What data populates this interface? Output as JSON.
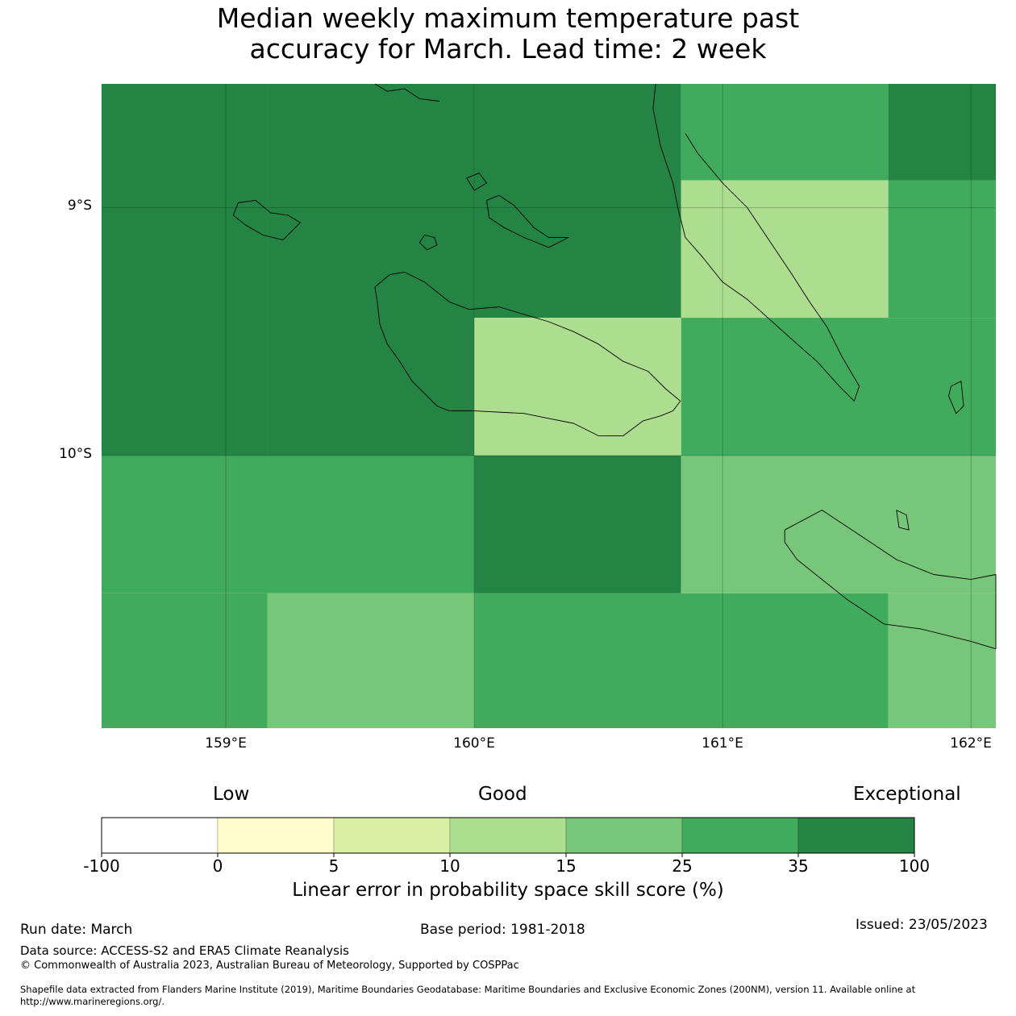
{
  "title_lines": [
    "Median weekly maximum temperature past",
    "accuracy for March. Lead time: 2 week"
  ],
  "map": {
    "lon_range": [
      158.5,
      162.1
    ],
    "lat_range": [
      -11.1,
      -8.5
    ],
    "lat_ticks": [
      {
        "value": -9,
        "label": "9°S"
      },
      {
        "value": -10,
        "label": "10°S"
      }
    ],
    "lon_ticks": [
      {
        "value": 159,
        "label": "159°E"
      },
      {
        "value": 160,
        "label": "160°E"
      },
      {
        "value": 161,
        "label": "161°E"
      },
      {
        "value": 162,
        "label": "162°E"
      }
    ],
    "cells": [
      {
        "lon0": 158.5,
        "lon1": 159.167,
        "lat0": -10.0,
        "lat1": -8.5,
        "category": "35-100"
      },
      {
        "lon0": 159.167,
        "lon1": 160.0,
        "lat0": -10.0,
        "lat1": -8.5,
        "category": "35-100"
      },
      {
        "lon0": 160.0,
        "lon1": 160.833,
        "lat0": -9.444,
        "lat1": -8.5,
        "category": "35-100"
      },
      {
        "lon0": 160.0,
        "lon1": 160.833,
        "lat0": -10.0,
        "lat1": -9.444,
        "category": "10-15"
      },
      {
        "lon0": 160.833,
        "lon1": 161.667,
        "lat0": -8.889,
        "lat1": -8.5,
        "category": "25-35"
      },
      {
        "lon0": 161.667,
        "lon1": 162.1,
        "lat0": -8.889,
        "lat1": -8.5,
        "category": "35-100"
      },
      {
        "lon0": 160.833,
        "lon1": 161.667,
        "lat0": -9.444,
        "lat1": -8.889,
        "category": "10-15"
      },
      {
        "lon0": 161.667,
        "lon1": 162.1,
        "lat0": -9.444,
        "lat1": -8.889,
        "category": "25-35"
      },
      {
        "lon0": 160.833,
        "lon1": 162.1,
        "lat0": -10.0,
        "lat1": -9.444,
        "category": "25-35"
      },
      {
        "lon0": 158.5,
        "lon1": 160.0,
        "lat0": -10.556,
        "lat1": -10.0,
        "category": "25-35"
      },
      {
        "lon0": 158.5,
        "lon1": 159.167,
        "lat0": -11.1,
        "lat1": -10.556,
        "category": "25-35"
      },
      {
        "lon0": 159.167,
        "lon1": 160.0,
        "lat0": -11.1,
        "lat1": -10.556,
        "category": "15-25"
      },
      {
        "lon0": 160.0,
        "lon1": 160.833,
        "lat0": -10.556,
        "lat1": -10.0,
        "category": "35-100"
      },
      {
        "lon0": 160.833,
        "lon1": 162.1,
        "lat0": -10.556,
        "lat1": -10.0,
        "category": "15-25"
      },
      {
        "lon0": 160.0,
        "lon1": 161.667,
        "lat0": -11.1,
        "lat1": -10.556,
        "category": "25-35"
      },
      {
        "lon0": 161.667,
        "lon1": 162.1,
        "lat0": -11.1,
        "lat1": -10.556,
        "category": "15-25"
      }
    ],
    "coastlines": [
      {
        "name": "guadalcanal-coast",
        "points": [
          [
            159.6,
            -9.32
          ],
          [
            159.66,
            -9.27
          ],
          [
            159.72,
            -9.26
          ],
          [
            159.8,
            -9.3
          ],
          [
            159.9,
            -9.38
          ],
          [
            159.98,
            -9.41
          ],
          [
            160.1,
            -9.4
          ],
          [
            160.2,
            -9.43
          ],
          [
            160.3,
            -9.46
          ],
          [
            160.4,
            -9.5
          ],
          [
            160.5,
            -9.55
          ],
          [
            160.6,
            -9.62
          ],
          [
            160.7,
            -9.66
          ],
          [
            160.77,
            -9.73
          ],
          [
            160.83,
            -9.78
          ],
          [
            160.8,
            -9.82
          ],
          [
            160.75,
            -9.84
          ],
          [
            160.68,
            -9.86
          ],
          [
            160.6,
            -9.92
          ],
          [
            160.5,
            -9.92
          ],
          [
            160.4,
            -9.87
          ],
          [
            160.3,
            -9.85
          ],
          [
            160.2,
            -9.83
          ],
          [
            160.0,
            -9.82
          ],
          [
            159.9,
            -9.82
          ],
          [
            159.85,
            -9.8
          ],
          [
            159.8,
            -9.75
          ],
          [
            159.75,
            -9.7
          ],
          [
            159.7,
            -9.62
          ],
          [
            159.65,
            -9.55
          ],
          [
            159.62,
            -9.47
          ],
          [
            159.61,
            -9.38
          ],
          [
            159.6,
            -9.32
          ]
        ]
      },
      {
        "name": "malaita-coast",
        "points": [
          [
            160.85,
            -8.7
          ],
          [
            160.9,
            -8.78
          ],
          [
            160.95,
            -8.84
          ],
          [
            161.0,
            -8.9
          ],
          [
            161.1,
            -9.0
          ],
          [
            161.2,
            -9.15
          ],
          [
            161.28,
            -9.27
          ],
          [
            161.35,
            -9.38
          ],
          [
            161.42,
            -9.48
          ],
          [
            161.48,
            -9.6
          ],
          [
            161.55,
            -9.72
          ],
          [
            161.53,
            -9.78
          ],
          [
            161.47,
            -9.72
          ],
          [
            161.38,
            -9.62
          ],
          [
            161.3,
            -9.55
          ],
          [
            161.2,
            -9.46
          ],
          [
            161.1,
            -9.37
          ],
          [
            161.0,
            -9.3
          ],
          [
            160.92,
            -9.2
          ],
          [
            160.85,
            -9.12
          ],
          [
            160.82,
            -9.0
          ],
          [
            160.8,
            -8.9
          ],
          [
            160.75,
            -8.75
          ],
          [
            160.72,
            -8.6
          ],
          [
            160.73,
            -8.5
          ]
        ]
      },
      {
        "name": "nggela-island-west",
        "points": [
          [
            160.05,
            -8.97
          ],
          [
            160.1,
            -8.95
          ],
          [
            160.16,
            -8.99
          ],
          [
            160.24,
            -9.08
          ],
          [
            160.3,
            -9.12
          ],
          [
            160.38,
            -9.12
          ],
          [
            160.3,
            -9.16
          ],
          [
            160.2,
            -9.12
          ],
          [
            160.12,
            -9.08
          ],
          [
            160.06,
            -9.04
          ],
          [
            160.05,
            -8.97
          ]
        ]
      },
      {
        "name": "nggela-island-east",
        "points": [
          [
            159.97,
            -8.88
          ],
          [
            160.02,
            -8.86
          ],
          [
            160.05,
            -8.9
          ],
          [
            160.0,
            -8.93
          ],
          [
            159.97,
            -8.88
          ]
        ]
      },
      {
        "name": "russell-islands",
        "points": [
          [
            159.05,
            -8.98
          ],
          [
            159.12,
            -8.97
          ],
          [
            159.18,
            -9.02
          ],
          [
            159.25,
            -9.03
          ],
          [
            159.3,
            -9.06
          ],
          [
            159.23,
            -9.13
          ],
          [
            159.15,
            -9.11
          ],
          [
            159.08,
            -9.07
          ],
          [
            159.03,
            -9.03
          ],
          [
            159.05,
            -8.98
          ]
        ]
      },
      {
        "name": "savo-island",
        "points": [
          [
            159.8,
            -9.11
          ],
          [
            159.84,
            -9.12
          ],
          [
            159.85,
            -9.15
          ],
          [
            159.81,
            -9.17
          ],
          [
            159.78,
            -9.14
          ],
          [
            159.8,
            -9.11
          ]
        ]
      },
      {
        "name": "san-cristobal-coast",
        "points": [
          [
            161.25,
            -10.3
          ],
          [
            161.4,
            -10.22
          ],
          [
            161.55,
            -10.32
          ],
          [
            161.7,
            -10.42
          ],
          [
            161.85,
            -10.48
          ],
          [
            162.0,
            -10.5
          ],
          [
            162.1,
            -10.48
          ],
          [
            162.1,
            -10.78
          ],
          [
            162.0,
            -10.75
          ],
          [
            161.8,
            -10.7
          ],
          [
            161.65,
            -10.68
          ],
          [
            161.5,
            -10.58
          ],
          [
            161.4,
            -10.5
          ],
          [
            161.3,
            -10.42
          ],
          [
            161.25,
            -10.35
          ],
          [
            161.25,
            -10.3
          ]
        ]
      },
      {
        "name": "ulawa-island",
        "points": [
          [
            161.92,
            -9.72
          ],
          [
            161.96,
            -9.7
          ],
          [
            161.97,
            -9.8
          ],
          [
            161.94,
            -9.83
          ],
          [
            161.91,
            -9.76
          ],
          [
            161.92,
            -9.72
          ]
        ]
      },
      {
        "name": "uki-island",
        "points": [
          [
            161.7,
            -10.22
          ],
          [
            161.74,
            -10.24
          ],
          [
            161.75,
            -10.3
          ],
          [
            161.71,
            -10.29
          ],
          [
            161.7,
            -10.22
          ]
        ]
      },
      {
        "name": "north-coast-islands",
        "points": [
          [
            159.6,
            -8.5
          ],
          [
            159.65,
            -8.53
          ],
          [
            159.72,
            -8.52
          ],
          [
            159.78,
            -8.56
          ],
          [
            159.86,
            -8.57
          ]
        ]
      }
    ]
  },
  "colorbar": {
    "category_labels": {
      "low": "Low",
      "good": "Good",
      "exceptional": "Exceptional"
    },
    "bins": [
      {
        "from": -100,
        "to": 0,
        "color": "#ffffff"
      },
      {
        "from": 0,
        "to": 5,
        "color": "#fffdcd"
      },
      {
        "from": 5,
        "to": 10,
        "color": "#d9efa3"
      },
      {
        "from": 10,
        "to": 15,
        "color": "#addd8e"
      },
      {
        "from": 15,
        "to": 25,
        "color": "#78c679"
      },
      {
        "from": 25,
        "to": 35,
        "color": "#41ab5d"
      },
      {
        "from": 35,
        "to": 100,
        "color": "#238443"
      }
    ],
    "tick_labels": [
      "-100",
      "0",
      "5",
      "10",
      "15",
      "25",
      "35",
      "100"
    ],
    "title": "Linear error in probability space skill score (%)"
  },
  "footer": {
    "run_date": "Run date: March",
    "base_period": "Base period: 1981-2018",
    "issued": "Issued: 23/05/2023",
    "data_source": "Data source: ACCESS-S2 and ERA5 Climate Reanalysis",
    "copyright": "© Commonwealth of Australia 2023, Australian Bureau of Meteorology, Supported by COSPPac",
    "shapefile_line1": "Shapefile data extracted from Flanders Marine Institute (2019), Maritime Boundaries Geodatabase: Maritime Boundaries and Exclusive Economic Zones (200NM), version 11. Available online at",
    "shapefile_line2": "http://www.marineregions.org/."
  }
}
